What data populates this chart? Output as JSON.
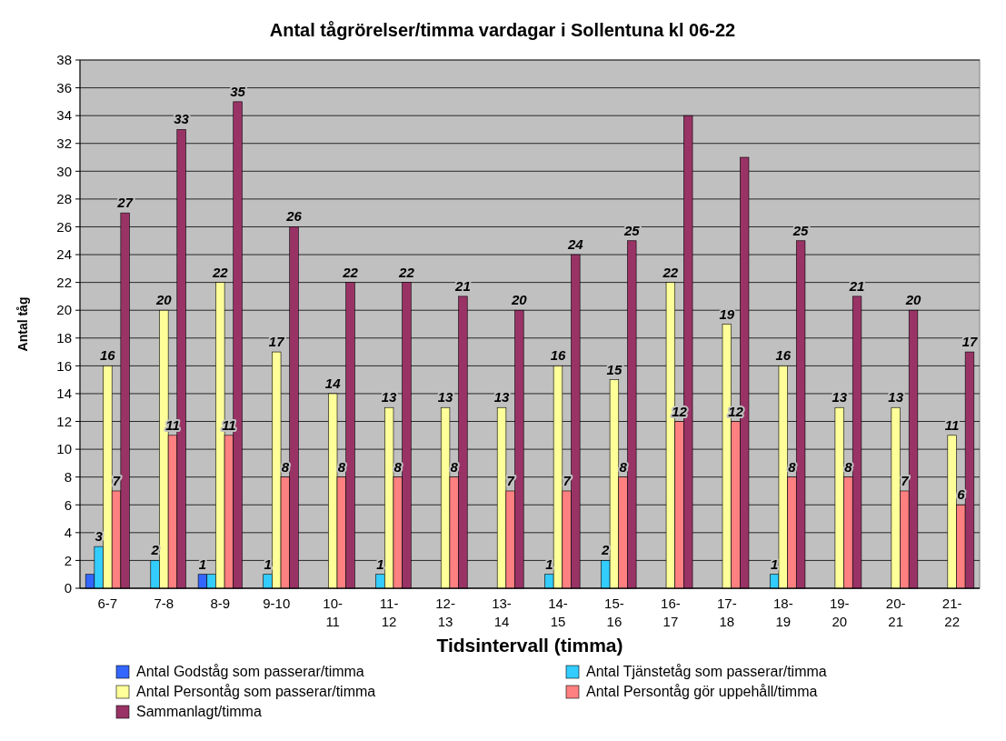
{
  "chart_data": {
    "type": "bar",
    "title": "Antal tågrörelser/timma vardagar i Sollentuna kl 06-22",
    "xlabel": "Tidsintervall (timma)",
    "ylabel": "Antal tåg",
    "categories": [
      "6-7",
      "7-8",
      "8-9",
      "9-10",
      "10-11",
      "11-12",
      "12-13",
      "13-14",
      "14-15",
      "15-16",
      "16-17",
      "17-18",
      "18-19",
      "19-20",
      "20-21",
      "21-22"
    ],
    "series": [
      {
        "name": "Antal Godståg som passerar/timma",
        "color": "#3366ff",
        "values": [
          1,
          0,
          1,
          0,
          0,
          0,
          0,
          0,
          0,
          0,
          0,
          0,
          0,
          0,
          0,
          0
        ],
        "value_labels": [
          null,
          null,
          "1",
          null,
          null,
          null,
          null,
          null,
          null,
          null,
          null,
          null,
          null,
          null,
          null,
          null
        ]
      },
      {
        "name": "Antal Tjänstetåg som passerar/timma",
        "color": "#33ccff",
        "values": [
          3,
          2,
          1,
          1,
          0,
          1,
          0,
          0,
          1,
          2,
          0,
          0,
          1,
          0,
          0,
          0
        ],
        "value_labels": [
          "3",
          "2",
          null,
          "1",
          null,
          "1",
          null,
          null,
          "1",
          "2",
          null,
          null,
          "1",
          null,
          null,
          null
        ]
      },
      {
        "name": "Antal Persontåg som passerar/timma",
        "color": "#ffff99",
        "values": [
          16,
          20,
          22,
          17,
          14,
          13,
          13,
          13,
          16,
          15,
          22,
          19,
          16,
          13,
          13,
          11
        ],
        "value_labels": [
          "16",
          "20",
          "22",
          "17",
          "14",
          "13",
          "13",
          "13",
          "16",
          "15",
          "22",
          "19",
          "16",
          "13",
          "13",
          "11"
        ]
      },
      {
        "name": "Antal Persontåg gör uppehåll/timma",
        "color": "#ff8080",
        "values": [
          7,
          11,
          11,
          8,
          8,
          8,
          8,
          7,
          7,
          8,
          12,
          12,
          8,
          8,
          7,
          6
        ],
        "value_labels": [
          "7",
          "11",
          "11",
          "8",
          "8",
          "8",
          "8",
          "7",
          "7",
          "8",
          "12",
          "12",
          "8",
          "8",
          "7",
          "6"
        ]
      },
      {
        "name": "Sammanlagt/timma",
        "color": "#993366",
        "values": [
          27,
          33,
          35,
          26,
          22,
          22,
          21,
          20,
          24,
          25,
          34,
          31,
          25,
          21,
          20,
          17
        ],
        "value_labels": [
          "27",
          "33",
          "35",
          "26",
          "22",
          "22",
          "21",
          "20",
          "24",
          "25",
          null,
          null,
          "25",
          "21",
          "20",
          "17"
        ]
      }
    ],
    "ylim": [
      0,
      38
    ],
    "yticks": [
      0,
      2,
      4,
      6,
      8,
      10,
      12,
      14,
      16,
      18,
      20,
      22,
      24,
      26,
      28,
      30,
      32,
      34,
      36,
      38
    ],
    "grid": "y",
    "legend": "bottom"
  }
}
